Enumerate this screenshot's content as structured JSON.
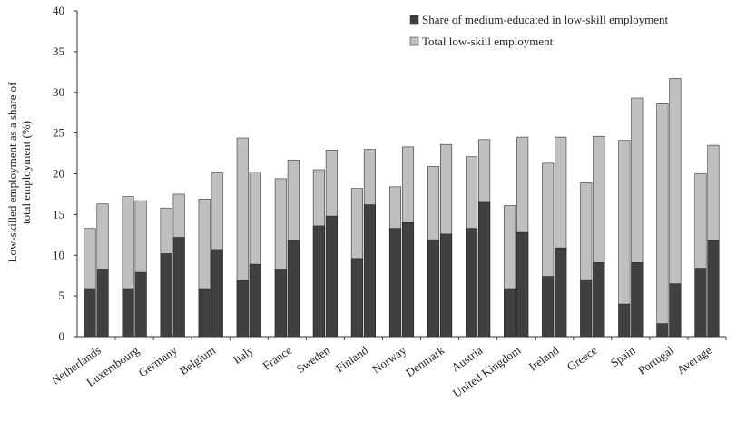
{
  "chart_data": {
    "type": "bar",
    "stacked": true,
    "grouped": true,
    "title": "",
    "xlabel": "",
    "ylabel_lines": [
      "Low-skilled employment as a share of",
      "total employment (%)"
    ],
    "ylim": [
      0,
      40
    ],
    "yticks": [
      0,
      5,
      10,
      15,
      20,
      25,
      30,
      35,
      40
    ],
    "grid": false,
    "legend_position": "top-right",
    "categories": [
      "Netherlands",
      "Luxembourg",
      "Germany",
      "Belgium",
      "Italy",
      "France",
      "Sweden",
      "Finland",
      "Norway",
      "Denmark",
      "Austria",
      "United Kingdom",
      "Ireland",
      "Greece",
      "Spain",
      "Portugal",
      "Average"
    ],
    "series": [
      {
        "name": "Share of medium-educated in low-skill employment",
        "color": "#404040",
        "bar1": [
          5.9,
          5.9,
          10.2,
          5.9,
          6.9,
          8.3,
          13.6,
          9.6,
          13.3,
          11.9,
          13.3,
          5.9,
          7.4,
          7.0,
          4.0,
          1.6,
          8.4
        ],
        "bar2": [
          8.3,
          7.9,
          12.2,
          10.7,
          8.9,
          11.8,
          14.8,
          16.2,
          14.0,
          12.6,
          16.5,
          12.8,
          10.9,
          9.1,
          9.1,
          6.5,
          11.8
        ]
      },
      {
        "name": "Total low-skill employment",
        "color": "#bfbfbf",
        "bar1": [
          13.3,
          17.2,
          15.8,
          16.9,
          24.4,
          19.4,
          20.5,
          18.2,
          18.4,
          20.9,
          22.1,
          16.1,
          21.3,
          18.9,
          24.1,
          28.6,
          20.0
        ],
        "bar2": [
          16.3,
          16.7,
          17.5,
          20.1,
          20.2,
          21.7,
          22.9,
          23.0,
          23.3,
          23.6,
          24.2,
          24.5,
          24.5,
          24.6,
          29.3,
          31.7,
          23.5
        ]
      }
    ]
  }
}
